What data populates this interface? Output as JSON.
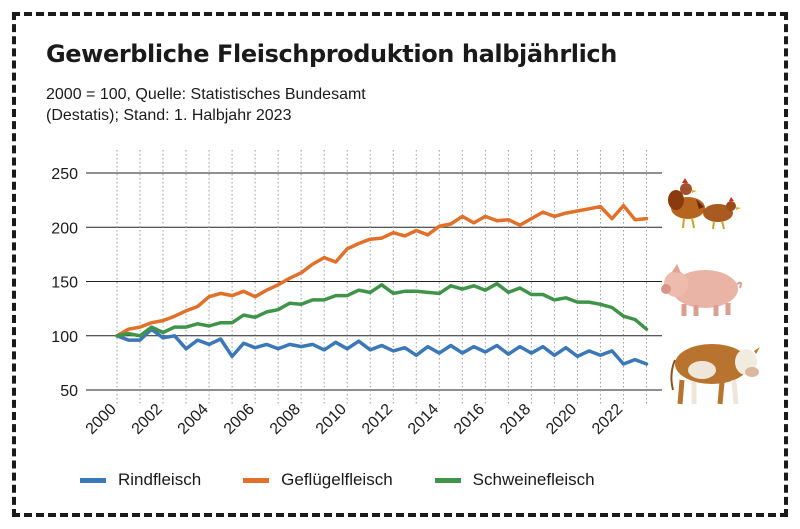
{
  "chart_data": {
    "type": "line",
    "title": "Gewerbliche Fleischproduktion halbjährlich",
    "subtitle_lines": [
      "2000 = 100, Quelle: Statistisches Bundesamt",
      "(Destatis); Stand: 1. Halbjahr 2023"
    ],
    "xlabel": "",
    "ylabel": "",
    "ylim": [
      50,
      250
    ],
    "yticks": [
      50,
      100,
      150,
      200,
      250
    ],
    "xlim": [
      2000,
      2023.5
    ],
    "xticks": [
      2000,
      2002,
      2004,
      2006,
      2008,
      2010,
      2012,
      2014,
      2016,
      2018,
      2020,
      2022
    ],
    "grid": "horizontal and dotted vertical",
    "legend_position": "bottom",
    "x": [
      2000,
      2000.5,
      2001,
      2001.5,
      2002,
      2002.5,
      2003,
      2003.5,
      2004,
      2004.5,
      2005,
      2005.5,
      2006,
      2006.5,
      2007,
      2007.5,
      2008,
      2008.5,
      2009,
      2009.5,
      2010,
      2010.5,
      2011,
      2011.5,
      2012,
      2012.5,
      2013,
      2013.5,
      2014,
      2014.5,
      2015,
      2015.5,
      2016,
      2016.5,
      2017,
      2017.5,
      2018,
      2018.5,
      2019,
      2019.5,
      2020,
      2020.5,
      2021,
      2021.5,
      2022,
      2022.5,
      2023
    ],
    "series": [
      {
        "name": "Rindfleisch",
        "color": "#3a78b8",
        "values": [
          100,
          96,
          96,
          106,
          98,
          100,
          88,
          96,
          92,
          97,
          81,
          93,
          89,
          92,
          88,
          92,
          90,
          92,
          87,
          94,
          88,
          95,
          87,
          91,
          86,
          89,
          82,
          90,
          84,
          91,
          84,
          90,
          85,
          91,
          83,
          90,
          84,
          90,
          82,
          89,
          81,
          86,
          82,
          86,
          74,
          78,
          74
        ]
      },
      {
        "name": "Geflügelfleisch",
        "color": "#e0702a",
        "values": [
          100,
          106,
          108,
          112,
          114,
          118,
          123,
          127,
          136,
          139,
          137,
          141,
          136,
          142,
          147,
          153,
          158,
          166,
          172,
          168,
          180,
          185,
          189,
          190,
          195,
          192,
          197,
          193,
          201,
          203,
          210,
          204,
          210,
          206,
          207,
          202,
          208,
          214,
          210,
          213,
          215,
          217,
          219,
          208,
          220,
          207,
          208
        ]
      },
      {
        "name": "Schweinefleisch",
        "color": "#3f9449",
        "values": [
          100,
          102,
          100,
          108,
          103,
          108,
          108,
          111,
          109,
          112,
          112,
          119,
          117,
          122,
          124,
          130,
          129,
          133,
          133,
          137,
          137,
          142,
          140,
          147,
          139,
          141,
          141,
          140,
          139,
          146,
          143,
          146,
          142,
          148,
          140,
          144,
          138,
          138,
          133,
          135,
          131,
          131,
          129,
          126,
          118,
          115,
          106
        ]
      }
    ]
  }
}
